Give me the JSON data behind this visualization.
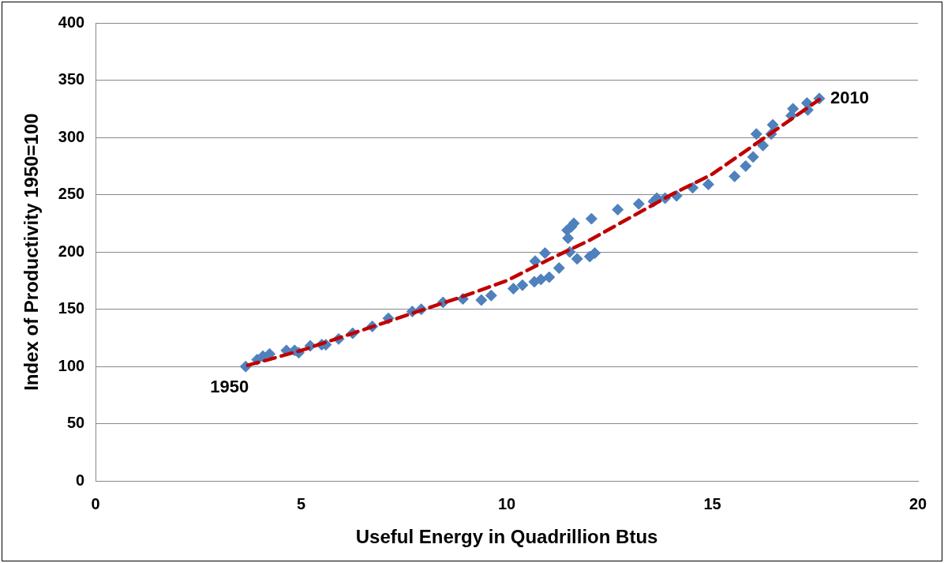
{
  "chart_data": {
    "type": "scatter",
    "xlabel": "Useful Energy in Quadrillion Btus",
    "ylabel": "Index of Productivity 1950=100",
    "xlim": [
      0,
      20
    ],
    "xticks": [
      0,
      5,
      10,
      15,
      20
    ],
    "ylim": [
      0,
      400
    ],
    "yticks": [
      0,
      50,
      100,
      150,
      200,
      250,
      300,
      350,
      400
    ],
    "grid": "y",
    "legend": false,
    "marker": "diamond",
    "series": [
      {
        "color": "#4f81bd",
        "x": [
          3.65,
          3.93,
          4.07,
          4.23,
          4.64,
          4.84,
          4.94,
          5.22,
          5.5,
          5.6,
          5.91,
          6.25,
          6.73,
          7.12,
          7.7,
          7.92,
          8.45,
          8.93,
          9.38,
          9.62,
          10.16,
          10.38,
          10.67,
          10.69,
          10.83,
          10.93,
          11.03,
          11.27,
          11.47,
          11.49,
          11.53,
          11.57,
          11.63,
          11.71,
          12.02,
          12.06,
          12.14,
          12.7,
          13.21,
          13.57,
          13.65,
          13.85,
          14.13,
          14.52,
          14.9,
          15.54,
          15.81,
          15.99,
          16.07,
          16.23,
          16.43,
          16.47,
          16.92,
          16.96,
          17.3,
          17.32,
          17.6
        ],
        "values": [
          100,
          106,
          109,
          111,
          114,
          114,
          112,
          118,
          119,
          119,
          124,
          129,
          135,
          142,
          148,
          150,
          156,
          159,
          158,
          162,
          168,
          171,
          174,
          192,
          176,
          199,
          178,
          186,
          219,
          212,
          200,
          222,
          225,
          194,
          196,
          229,
          199,
          237,
          242,
          244,
          247,
          247,
          249,
          256,
          259,
          266,
          275,
          283,
          303,
          293,
          303,
          311,
          319,
          325,
          330,
          324,
          334
        ]
      },
      {
        "type": "line",
        "color": "#c00000",
        "line_style": "dashed",
        "marker": "none",
        "x": [
          3.7,
          5,
          7,
          9,
          10,
          11,
          12,
          13,
          14,
          15,
          16,
          17,
          17.6
        ],
        "values": [
          101,
          114,
          138,
          162,
          175,
          193,
          210,
          230,
          250,
          268,
          293,
          318,
          333
        ]
      }
    ],
    "annotations": [
      {
        "text": "1950",
        "x": 3.65,
        "y": 100
      },
      {
        "text": "2010",
        "x": 17.6,
        "y": 334
      }
    ]
  }
}
